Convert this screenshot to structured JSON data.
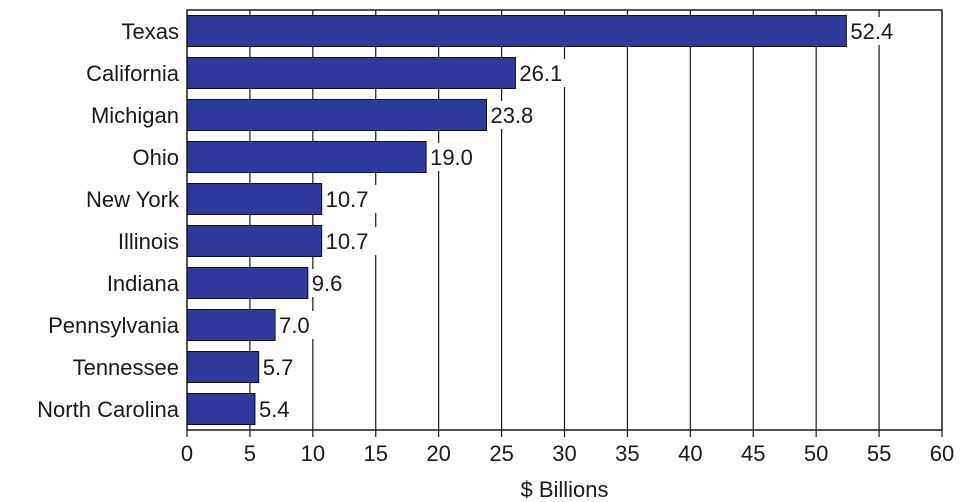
{
  "chart_data": {
    "type": "bar",
    "orientation": "horizontal",
    "categories": [
      "Texas",
      "California",
      "Michigan",
      "Ohio",
      "New York",
      "Illinois",
      "Indiana",
      "Pennsylvania",
      "Tennessee",
      "North Carolina"
    ],
    "values": [
      52.4,
      26.1,
      23.8,
      19.0,
      10.7,
      10.7,
      9.6,
      7.0,
      5.7,
      5.4
    ],
    "value_labels": [
      "52.4",
      "26.1",
      "23.8",
      "19.0",
      "10.7",
      "10.7",
      "9.6",
      "7.0",
      "5.7",
      "5.4"
    ],
    "title": "",
    "xlabel": "$ Billions",
    "ylabel": "",
    "xlim": [
      0,
      60
    ],
    "xticks": [
      0,
      5,
      10,
      15,
      20,
      25,
      30,
      35,
      40,
      45,
      50,
      55,
      60
    ],
    "grid": true,
    "legend": "none",
    "bar_color": "#2e3a9c",
    "bar_outline_color": "#111111",
    "grid_color": "#1a1a1a"
  }
}
